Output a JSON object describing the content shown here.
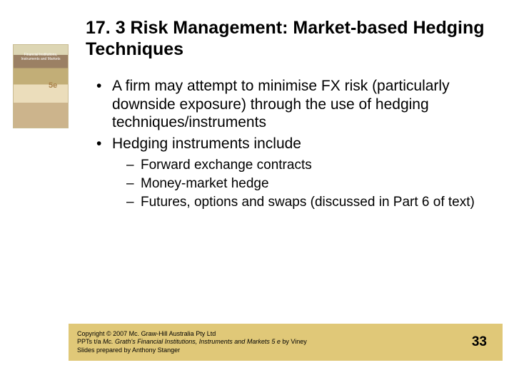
{
  "colors": {
    "background": "#ffffff",
    "text": "#000000",
    "footer_bg": "#e0c878",
    "sidebar_accent": "#a88048"
  },
  "typography": {
    "title_fontsize": 25,
    "bullet_l1_fontsize": 21,
    "bullet_l2_fontsize": 19,
    "footer_fontsize": 9,
    "page_number_fontsize": 19,
    "font_family": "Arial"
  },
  "sidebar": {
    "caption": "Financial Institutions, Instruments and Markets",
    "edition": "5e"
  },
  "title": "17. 3  Risk Management: Market-based Hedging Techniques",
  "bullets": [
    {
      "text": "A firm may attempt to minimise FX risk (particularly downside exposure) through the use of hedging techniques/instruments",
      "children": []
    },
    {
      "text": "Hedging instruments include",
      "children": [
        "Forward exchange contracts",
        "Money-market hedge",
        "Futures, options and swaps (discussed in Part 6 of text)"
      ]
    }
  ],
  "footer": {
    "line1": "Copyright © 2007 Mc. Graw-Hill Australia Pty Ltd",
    "line2_prefix": "PPTs t/a ",
    "line2_italic": "Mc. Grath's Financial Institutions, Instruments and Markets 5 e",
    "line2_suffix": " by Viney",
    "line3": "Slides prepared by Anthony Stanger"
  },
  "page_number": "33"
}
